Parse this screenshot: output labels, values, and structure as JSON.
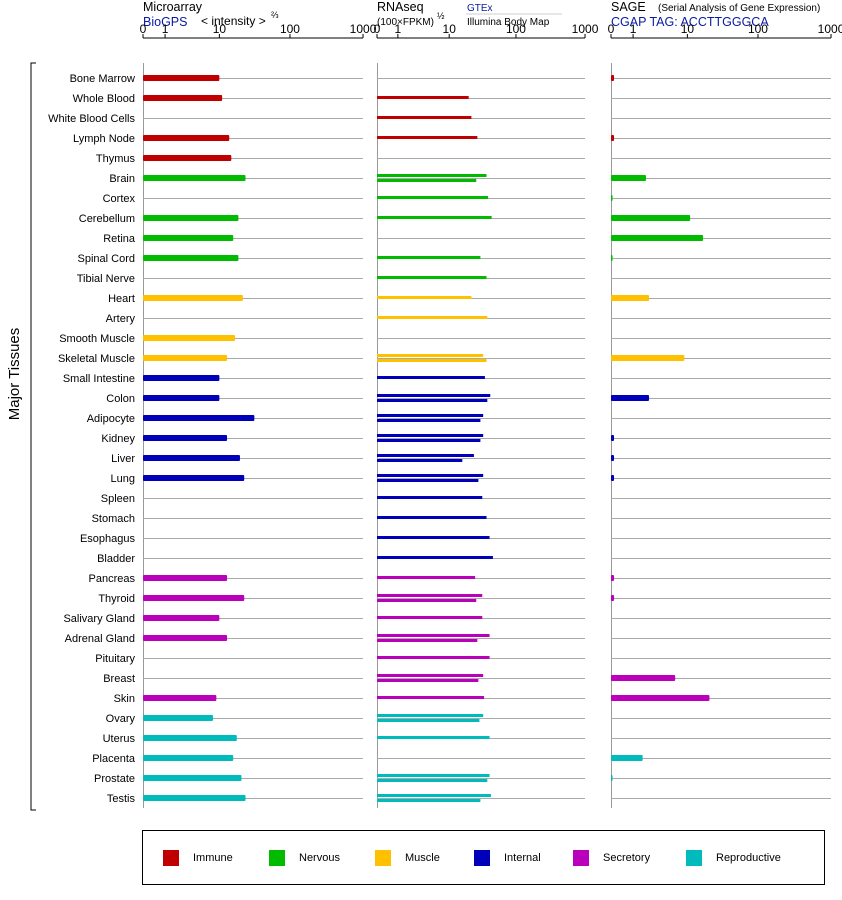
{
  "chart_data": {
    "type": "bar",
    "tissue_axis_label": "Major Tissues",
    "tissues": [
      "Bone Marrow",
      "Whole Blood",
      "White Blood Cells",
      "Lymph Node",
      "Thymus",
      "Brain",
      "Cortex",
      "Cerebellum",
      "Retina",
      "Spinal Cord",
      "Tibial Nerve",
      "Heart",
      "Artery",
      "Smooth Muscle",
      "Skeletal Muscle",
      "Small Intestine",
      "Colon",
      "Adipocyte",
      "Kidney",
      "Liver",
      "Lung",
      "Spleen",
      "Stomach",
      "Esophagus",
      "Bladder",
      "Pancreas",
      "Thyroid",
      "Salivary Gland",
      "Adrenal Gland",
      "Pituitary",
      "Breast",
      "Skin",
      "Ovary",
      "Uterus",
      "Placenta",
      "Prostate",
      "Testis"
    ],
    "categories_of_tissues": [
      "Immune",
      "Immune",
      "Immune",
      "Immune",
      "Immune",
      "Nervous",
      "Nervous",
      "Nervous",
      "Nervous",
      "Nervous",
      "Nervous",
      "Muscle",
      "Muscle",
      "Muscle",
      "Muscle",
      "Internal",
      "Internal",
      "Internal",
      "Internal",
      "Internal",
      "Internal",
      "Internal",
      "Internal",
      "Internal",
      "Internal",
      "Secretory",
      "Secretory",
      "Secretory",
      "Secretory",
      "Secretory",
      "Secretory",
      "Secretory",
      "Reproductive",
      "Reproductive",
      "Reproductive",
      "Reproductive",
      "Reproductive"
    ],
    "colors": {
      "Immune": "#c00000",
      "Nervous": "#00bb00",
      "Muscle": "#ffc000",
      "Internal": "#0000bb",
      "Secretory": "#bb00bb",
      "Reproductive": "#00bbbb"
    },
    "panels": [
      {
        "id": "microarray",
        "title": "Microarray",
        "subtitle": "BioGPS",
        "unit_label": "< intensity >",
        "unit_exponent": "⅔",
        "ticks": [
          "0",
          "1",
          "10",
          "100",
          "1000"
        ],
        "values": [
          10,
          11,
          null,
          14,
          15,
          24,
          null,
          19,
          16,
          19,
          null,
          22,
          null,
          17,
          13,
          10,
          10,
          32,
          13,
          20,
          23,
          null,
          null,
          null,
          null,
          13,
          23,
          10,
          13,
          null,
          null,
          9,
          8,
          18,
          16,
          21,
          24
        ]
      },
      {
        "id": "rnaseq",
        "title": "RNAseq",
        "unit_label": "(100×FPKM)",
        "unit_exponent": "½",
        "ticks": [
          "0",
          "1",
          "10",
          "100",
          "1000"
        ],
        "legend_gtex": "GTEx",
        "legend_ibm": "Illumina Body Map",
        "gtex": [
          null,
          20,
          22,
          27,
          null,
          37,
          39,
          44,
          null,
          30,
          37,
          null,
          38,
          null,
          33,
          35,
          42,
          33,
          33,
          24,
          33,
          32,
          37,
          41,
          46,
          25,
          32,
          32,
          41,
          41,
          33,
          34,
          33,
          41,
          null,
          41,
          43
        ],
        "ibm": [
          null,
          null,
          null,
          null,
          null,
          26,
          null,
          null,
          null,
          null,
          null,
          22,
          null,
          null,
          37,
          null,
          38,
          30,
          30,
          16,
          28,
          null,
          null,
          null,
          null,
          null,
          26,
          null,
          27,
          null,
          28,
          null,
          29,
          null,
          null,
          38,
          30
        ]
      },
      {
        "id": "sage",
        "title": "SAGE",
        "title_note": "(Serial Analysis of Gene Expression)",
        "subtitle": "CGAP TAG: ACCTTGGGCA",
        "ticks": [
          "0",
          "1",
          "10",
          "100",
          "1000"
        ],
        "values": [
          0.1,
          null,
          null,
          0.1,
          null,
          2,
          0.05,
          11,
          17,
          0.05,
          null,
          2.3,
          null,
          null,
          9,
          null,
          2.3,
          null,
          0.1,
          0.1,
          0.1,
          null,
          null,
          null,
          null,
          0.1,
          0.1,
          null,
          null,
          null,
          6.5,
          21,
          null,
          null,
          1.7,
          0.05,
          null
        ]
      }
    ]
  },
  "legend": {
    "items": [
      {
        "label": "Immune",
        "color": "#c00000"
      },
      {
        "label": "Nervous",
        "color": "#00bb00"
      },
      {
        "label": "Muscle",
        "color": "#ffc000"
      },
      {
        "label": "Internal",
        "color": "#0000bb"
      },
      {
        "label": "Secretory",
        "color": "#bb00bb"
      },
      {
        "label": "Reproductive",
        "color": "#00bbbb"
      }
    ]
  }
}
